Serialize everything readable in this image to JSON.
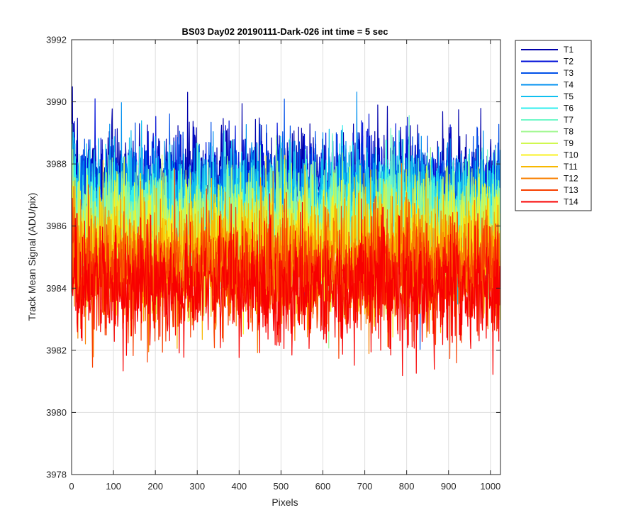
{
  "chart_data": {
    "type": "line",
    "title": "BS03 Day02 20190111-Dark-026 int time = 5 sec",
    "xlabel": "Pixels",
    "ylabel": "Track Mean Signal (ADU/pix)",
    "xlim": [
      0,
      1024
    ],
    "ylim": [
      3978,
      3992
    ],
    "x_ticks": [
      0,
      100,
      200,
      300,
      400,
      500,
      600,
      700,
      800,
      900,
      1000
    ],
    "y_ticks": [
      3978,
      3980,
      3982,
      3984,
      3986,
      3988,
      3990,
      3992
    ],
    "x_tick_labels": [
      "0",
      "100",
      "200",
      "300",
      "400",
      "500",
      "600",
      "700",
      "800",
      "900",
      "1000"
    ],
    "y_tick_labels": [
      "3978",
      "3980",
      "3982",
      "3984",
      "3986",
      "3988",
      "3990",
      "3992"
    ],
    "grid": true,
    "legend_position": "outside-top-right",
    "n_points": 1024,
    "series": [
      {
        "name": "T1",
        "color": "#0000aa",
        "mean": 3987.3,
        "noise_sd": 0.95
      },
      {
        "name": "T2",
        "color": "#0010d8",
        "mean": 3987.1,
        "noise_sd": 0.95
      },
      {
        "name": "T3",
        "color": "#0050e8",
        "mean": 3986.9,
        "noise_sd": 0.95
      },
      {
        "name": "T4",
        "color": "#0090f0",
        "mean": 3986.7,
        "noise_sd": 0.95
      },
      {
        "name": "T5",
        "color": "#10c0f0",
        "mean": 3986.5,
        "noise_sd": 0.95
      },
      {
        "name": "T6",
        "color": "#30eeee",
        "mean": 3986.3,
        "noise_sd": 0.95
      },
      {
        "name": "T7",
        "color": "#70f8c8",
        "mean": 3986.1,
        "noise_sd": 0.95
      },
      {
        "name": "T8",
        "color": "#a0f890",
        "mean": 3985.9,
        "noise_sd": 0.95
      },
      {
        "name": "T9",
        "color": "#d0f850",
        "mean": 3985.6,
        "noise_sd": 0.95
      },
      {
        "name": "T10",
        "color": "#f8f020",
        "mean": 3985.3,
        "noise_sd": 0.95
      },
      {
        "name": "T11",
        "color": "#f8b800",
        "mean": 3985.0,
        "noise_sd": 0.95
      },
      {
        "name": "T12",
        "color": "#f88000",
        "mean": 3984.7,
        "noise_sd": 0.95
      },
      {
        "name": "T13",
        "color": "#f84000",
        "mean": 3984.4,
        "noise_sd": 0.95
      },
      {
        "name": "T14",
        "color": "#f80000",
        "mean": 3984.1,
        "noise_sd": 0.95
      }
    ]
  }
}
